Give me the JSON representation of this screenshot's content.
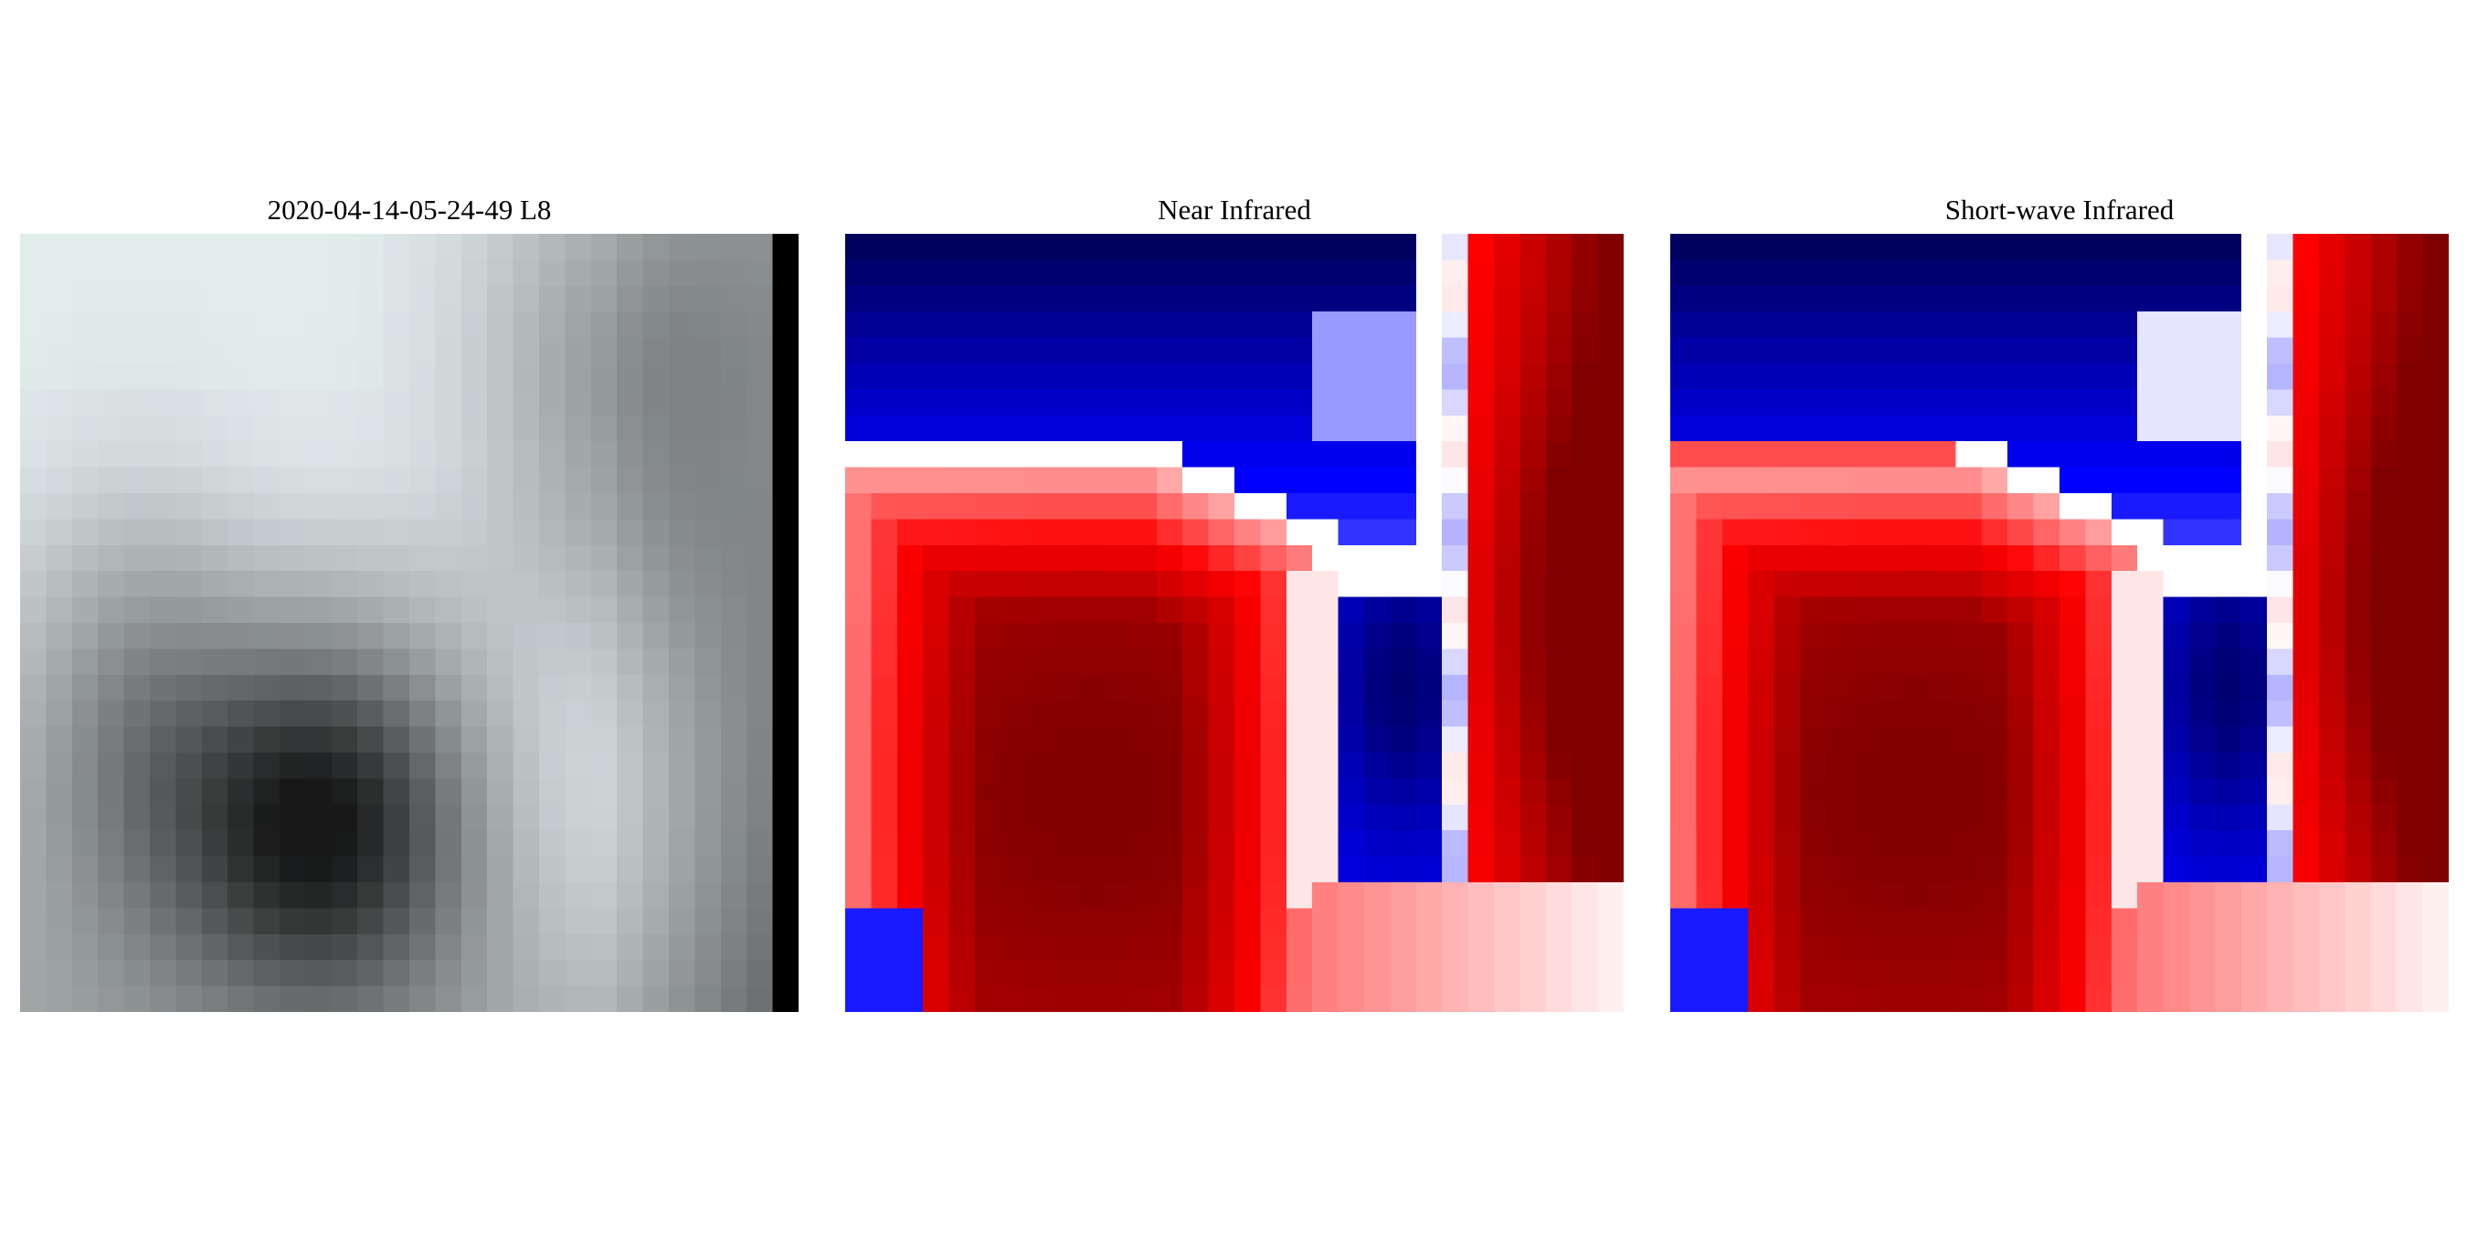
{
  "panels": [
    {
      "id": "rgb",
      "title": "2020-04-14-05-24-49   L8"
    },
    {
      "id": "nir",
      "title": "Near Infrared"
    },
    {
      "id": "swir",
      "title": "Short-wave Infrared"
    }
  ],
  "colors": {
    "diverging_low": "#00004c",
    "diverging_mid_low": "#0000ff",
    "diverging_center": "#ffffff",
    "diverging_mid_high": "#ff0000",
    "diverging_high": "#800000"
  }
}
